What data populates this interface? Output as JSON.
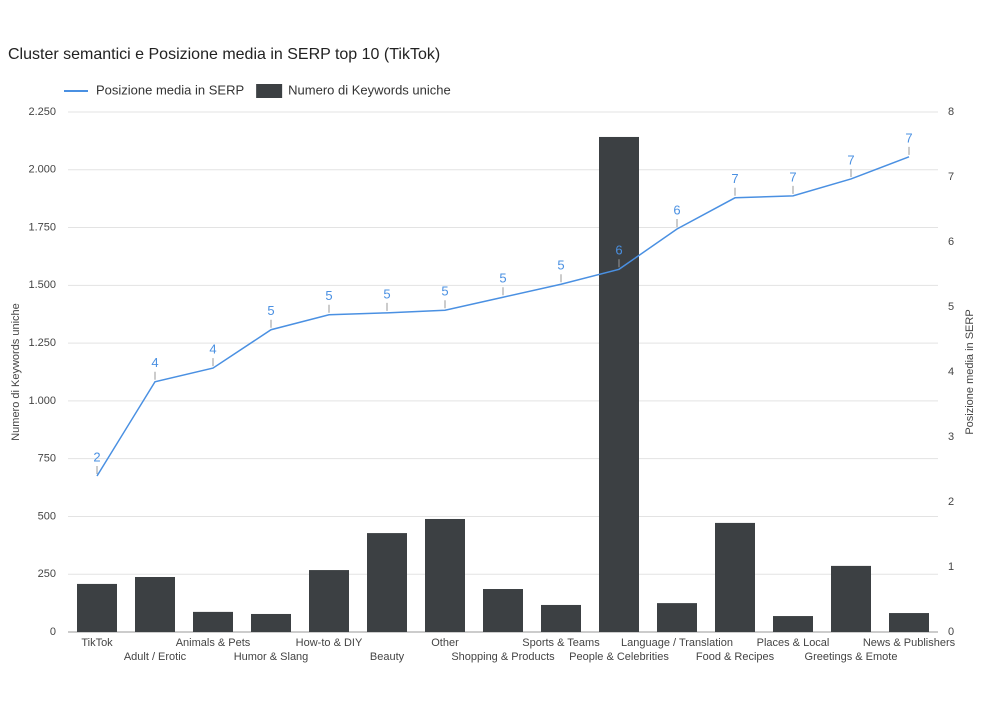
{
  "chart_data": {
    "type": "combo",
    "title": "Cluster semantici e Posizione media in SERP top 10 (TikTok)",
    "ylabel": "Numero di Keywords uniche",
    "y2label": "Posizione media in SERP",
    "categories": [
      "TikTok",
      "Adult / Erotic",
      "Animals & Pets",
      "Humor & Slang",
      "How-to & DIY",
      "Beauty",
      "Other",
      "Shopping & Products",
      "Sports & Teams",
      "People & Celebrities",
      "Language / Translation",
      "Food & Recipes",
      "Places & Local",
      "Greetings & Emote",
      "News & Publishers"
    ],
    "series": [
      {
        "name": "Posizione media in SERP",
        "type": "line",
        "axis": "y2",
        "color": "#4a90e2",
        "values": [
          2.4,
          3.85,
          4.06,
          4.65,
          4.88,
          4.91,
          4.95,
          5.15,
          5.35,
          5.58,
          6.2,
          6.68,
          6.71,
          6.97,
          7.31
        ],
        "value_labels": [
          "2",
          "4",
          "4",
          "5",
          "5",
          "5",
          "5",
          "5",
          "5",
          "6",
          "6",
          "7",
          "7",
          "7",
          "7"
        ]
      },
      {
        "name": "Numero di Keywords uniche",
        "type": "bar",
        "color": "#3c4043",
        "values": [
          208,
          238,
          87,
          78,
          268,
          428,
          489,
          186,
          117,
          2142,
          125,
          472,
          69,
          286,
          82
        ]
      }
    ],
    "ylim": [
      0,
      2250
    ],
    "yticks": [
      0,
      250,
      500,
      750,
      {
        "value": 1000,
        "label": "1.000"
      },
      {
        "value": 1250,
        "label": "1.250"
      },
      {
        "value": 1500,
        "label": "1.500"
      },
      {
        "value": 1750,
        "label": "1.750"
      },
      {
        "value": 2000,
        "label": "2.000"
      },
      {
        "value": 2250,
        "label": "2.250"
      }
    ],
    "y2lim": [
      0,
      8
    ],
    "y2ticks": [
      0,
      1,
      2,
      3,
      4,
      5,
      6,
      7,
      8
    ],
    "grid": true,
    "legend": "top"
  }
}
